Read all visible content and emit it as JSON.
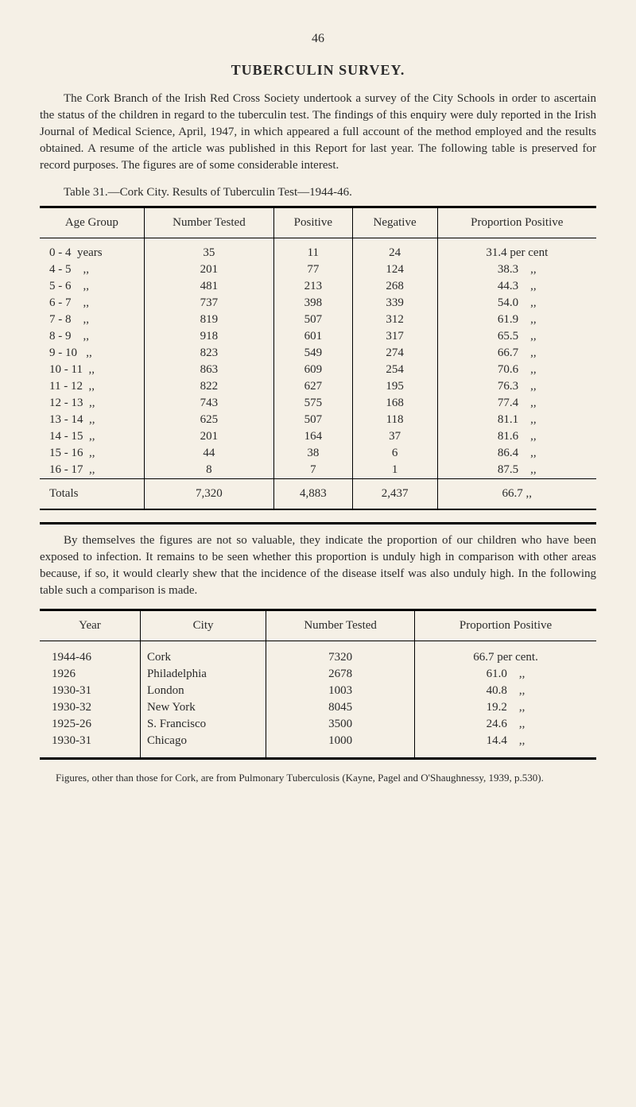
{
  "page_number": "46",
  "title": "TUBERCULIN SURVEY.",
  "intro_paragraph": "The Cork Branch of the Irish Red Cross Society undertook a survey of the City Schools in order to ascertain the status of the children in regard to the tuberculin test. The findings of this enquiry were duly reported in the Irish Journal of Medical Science, April, 1947, in which appeared a full account of the method employed and the results obtained. A resume of the article was published in this Report for last year. The following table is preserved for record purposes. The figures are of some considerable interest.",
  "table1_caption": "Table 31.—Cork City. Results of Tuberculin Test—1944-46.",
  "table1": {
    "headers": [
      "Age Group",
      "Number Tested",
      "Positive",
      "Negative",
      "Proportion Positive"
    ],
    "rows": [
      [
        "0 - 4  years",
        "35",
        "11",
        "24",
        "31.4 per cent"
      ],
      [
        "4 - 5    ,,",
        "201",
        "77",
        "124",
        "38.3    ,,"
      ],
      [
        "5 - 6    ,,",
        "481",
        "213",
        "268",
        "44.3    ,,"
      ],
      [
        "6 - 7    ,,",
        "737",
        "398",
        "339",
        "54.0    ,,"
      ],
      [
        "7 - 8    ,,",
        "819",
        "507",
        "312",
        "61.9    ,,"
      ],
      [
        "8 - 9    ,,",
        "918",
        "601",
        "317",
        "65.5    ,,"
      ],
      [
        "9 - 10   ,,",
        "823",
        "549",
        "274",
        "66.7    ,,"
      ],
      [
        "10 - 11  ,,",
        "863",
        "609",
        "254",
        "70.6    ,,"
      ],
      [
        "11 - 12  ,,",
        "822",
        "627",
        "195",
        "76.3    ,,"
      ],
      [
        "12 - 13  ,,",
        "743",
        "575",
        "168",
        "77.4    ,,"
      ],
      [
        "13 - 14  ,,",
        "625",
        "507",
        "118",
        "81.1    ,,"
      ],
      [
        "14 - 15  ,,",
        "201",
        "164",
        "37",
        "81.6    ,,"
      ],
      [
        "15 - 16  ,,",
        "44",
        "38",
        "6",
        "86.4    ,,"
      ],
      [
        "16 - 17  ,,",
        "8",
        "7",
        "1",
        "87.5    ,,"
      ]
    ],
    "totals": [
      "Totals",
      "7,320",
      "4,883",
      "2,437",
      "66.7    ,,"
    ]
  },
  "middle_paragraph": "By themselves the figures are not so valuable, they indicate the proportion of our children who have been exposed to infection. It remains to be seen whether this proportion is unduly high in comparison with other areas because, if so, it would clearly shew that the incidence of the disease itself was also unduly high. In the following table such a comparison is made.",
  "table2": {
    "headers": [
      "Year",
      "City",
      "Number Tested",
      "Proportion Positive"
    ],
    "rows": [
      [
        "1944-46",
        "Cork",
        "7320",
        "66.7 per cent."
      ],
      [
        "1926",
        "Philadelphia",
        "2678",
        "61.0    ,,"
      ],
      [
        "1930-31",
        "London",
        "1003",
        "40.8    ,,"
      ],
      [
        "1930-32",
        "New York",
        "8045",
        "19.2    ,,"
      ],
      [
        "1925-26",
        "S. Francisco",
        "3500",
        "24.6    ,,"
      ],
      [
        "1930-31",
        "Chicago",
        "1000",
        "14.4    ,,"
      ]
    ]
  },
  "footnote": "Figures, other than those for Cork, are from Pulmonary Tuberculosis (Kayne, Pagel and O'Shaughnessy, 1939, p.530)."
}
